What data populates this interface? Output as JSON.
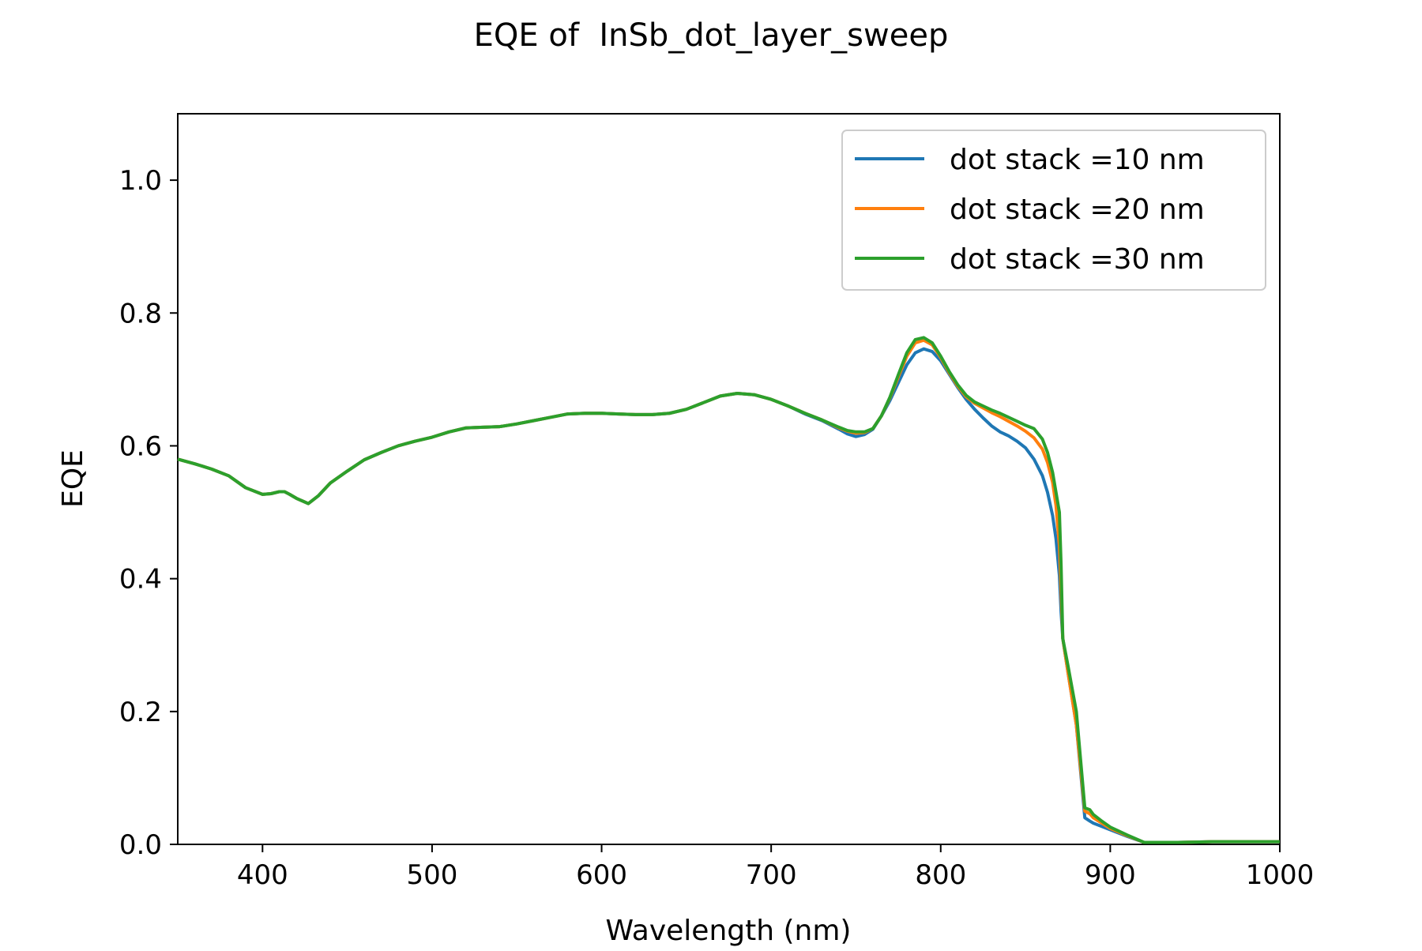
{
  "chart_data": {
    "type": "line",
    "title": "EQE of  InSb_dot_layer_sweep",
    "xlabel": "Wavelength (nm)",
    "ylabel": "EQE",
    "xlim": [
      350,
      1000
    ],
    "ylim": [
      0,
      1.1
    ],
    "xticks": [
      400,
      500,
      600,
      700,
      800,
      900,
      1000
    ],
    "xtick_labels": [
      "400",
      "500",
      "600",
      "700",
      "800",
      "900",
      "1000"
    ],
    "yticks": [
      0.0,
      0.2,
      0.4,
      0.6,
      0.8,
      1.0
    ],
    "ytick_labels": [
      "0.0",
      "0.2",
      "0.4",
      "0.6",
      "0.8",
      "1.0"
    ],
    "grid": false,
    "legend_position": "top-right",
    "series": [
      {
        "name": "dot stack =10 nm",
        "color": "#1f77b4",
        "x": [
          350,
          360,
          370,
          380,
          390,
          400,
          405,
          410,
          413,
          416,
          420,
          427,
          433,
          440,
          450,
          460,
          470,
          480,
          490,
          500,
          510,
          520,
          530,
          540,
          550,
          560,
          570,
          580,
          590,
          600,
          610,
          620,
          630,
          640,
          650,
          660,
          670,
          680,
          690,
          700,
          710,
          720,
          730,
          740,
          745,
          750,
          755,
          760,
          765,
          770,
          775,
          780,
          785,
          790,
          795,
          800,
          805,
          810,
          815,
          820,
          825,
          830,
          835,
          840,
          845,
          850,
          855,
          860,
          863,
          866,
          868,
          870,
          871,
          872,
          875,
          880,
          885,
          888,
          890,
          895,
          900,
          910,
          920,
          940,
          960,
          1000
        ],
        "y": [
          0.58,
          0.573,
          0.565,
          0.555,
          0.537,
          0.527,
          0.528,
          0.531,
          0.531,
          0.527,
          0.521,
          0.513,
          0.525,
          0.544,
          0.562,
          0.579,
          0.59,
          0.6,
          0.607,
          0.613,
          0.621,
          0.627,
          0.628,
          0.629,
          0.633,
          0.638,
          0.643,
          0.648,
          0.649,
          0.649,
          0.648,
          0.647,
          0.647,
          0.649,
          0.655,
          0.665,
          0.675,
          0.679,
          0.677,
          0.67,
          0.66,
          0.648,
          0.638,
          0.625,
          0.618,
          0.614,
          0.617,
          0.625,
          0.645,
          0.668,
          0.695,
          0.722,
          0.74,
          0.746,
          0.742,
          0.728,
          0.708,
          0.688,
          0.67,
          0.655,
          0.642,
          0.63,
          0.621,
          0.615,
          0.607,
          0.597,
          0.58,
          0.555,
          0.53,
          0.495,
          0.46,
          0.405,
          0.35,
          0.31,
          0.26,
          0.18,
          0.04,
          0.035,
          0.032,
          0.027,
          0.022,
          0.012,
          0.003,
          0.003,
          0.004,
          0.004
        ]
      },
      {
        "name": "dot stack =20 nm",
        "color": "#ff7f0e",
        "x": [
          350,
          360,
          370,
          380,
          390,
          400,
          405,
          410,
          413,
          416,
          420,
          427,
          433,
          440,
          450,
          460,
          470,
          480,
          490,
          500,
          510,
          520,
          530,
          540,
          550,
          560,
          570,
          580,
          590,
          600,
          610,
          620,
          630,
          640,
          650,
          660,
          670,
          680,
          690,
          700,
          710,
          720,
          730,
          740,
          745,
          750,
          755,
          760,
          765,
          770,
          775,
          780,
          785,
          790,
          795,
          800,
          805,
          810,
          815,
          820,
          825,
          830,
          835,
          840,
          845,
          850,
          855,
          860,
          863,
          866,
          868,
          870,
          871,
          872,
          875,
          880,
          885,
          888,
          890,
          895,
          900,
          910,
          920,
          940,
          960,
          1000
        ],
        "y": [
          0.58,
          0.573,
          0.565,
          0.555,
          0.537,
          0.527,
          0.528,
          0.531,
          0.531,
          0.527,
          0.521,
          0.513,
          0.525,
          0.544,
          0.562,
          0.579,
          0.59,
          0.6,
          0.607,
          0.613,
          0.621,
          0.627,
          0.628,
          0.629,
          0.633,
          0.638,
          0.643,
          0.648,
          0.649,
          0.649,
          0.648,
          0.647,
          0.647,
          0.649,
          0.655,
          0.665,
          0.675,
          0.679,
          0.677,
          0.67,
          0.66,
          0.649,
          0.639,
          0.627,
          0.622,
          0.619,
          0.62,
          0.626,
          0.645,
          0.672,
          0.704,
          0.735,
          0.755,
          0.759,
          0.752,
          0.733,
          0.71,
          0.69,
          0.674,
          0.664,
          0.657,
          0.65,
          0.644,
          0.637,
          0.63,
          0.622,
          0.612,
          0.595,
          0.575,
          0.545,
          0.51,
          0.45,
          0.38,
          0.31,
          0.26,
          0.18,
          0.05,
          0.046,
          0.04,
          0.032,
          0.024,
          0.013,
          0.003,
          0.003,
          0.004,
          0.004
        ]
      },
      {
        "name": "dot stack =30 nm",
        "color": "#2ca02c",
        "x": [
          350,
          360,
          370,
          380,
          390,
          400,
          405,
          410,
          413,
          416,
          420,
          427,
          433,
          440,
          450,
          460,
          470,
          480,
          490,
          500,
          510,
          520,
          530,
          540,
          550,
          560,
          570,
          580,
          590,
          600,
          610,
          620,
          630,
          640,
          650,
          660,
          670,
          680,
          690,
          700,
          710,
          720,
          730,
          740,
          745,
          750,
          755,
          760,
          765,
          770,
          775,
          780,
          785,
          790,
          795,
          800,
          805,
          810,
          815,
          820,
          825,
          830,
          835,
          840,
          845,
          850,
          855,
          860,
          863,
          866,
          868,
          870,
          871,
          872,
          875,
          880,
          885,
          888,
          890,
          895,
          900,
          910,
          920,
          940,
          960,
          1000
        ],
        "y": [
          0.58,
          0.573,
          0.565,
          0.555,
          0.537,
          0.527,
          0.528,
          0.531,
          0.531,
          0.527,
          0.521,
          0.513,
          0.525,
          0.544,
          0.562,
          0.579,
          0.59,
          0.6,
          0.607,
          0.613,
          0.621,
          0.627,
          0.628,
          0.629,
          0.633,
          0.638,
          0.643,
          0.648,
          0.649,
          0.649,
          0.648,
          0.647,
          0.647,
          0.649,
          0.655,
          0.665,
          0.675,
          0.679,
          0.677,
          0.67,
          0.66,
          0.649,
          0.639,
          0.628,
          0.623,
          0.621,
          0.621,
          0.626,
          0.645,
          0.673,
          0.707,
          0.74,
          0.76,
          0.763,
          0.755,
          0.735,
          0.712,
          0.692,
          0.676,
          0.666,
          0.66,
          0.654,
          0.649,
          0.643,
          0.637,
          0.631,
          0.626,
          0.61,
          0.59,
          0.56,
          0.53,
          0.5,
          0.42,
          0.31,
          0.27,
          0.2,
          0.055,
          0.052,
          0.045,
          0.035,
          0.026,
          0.014,
          0.003,
          0.003,
          0.004,
          0.004
        ]
      }
    ]
  }
}
